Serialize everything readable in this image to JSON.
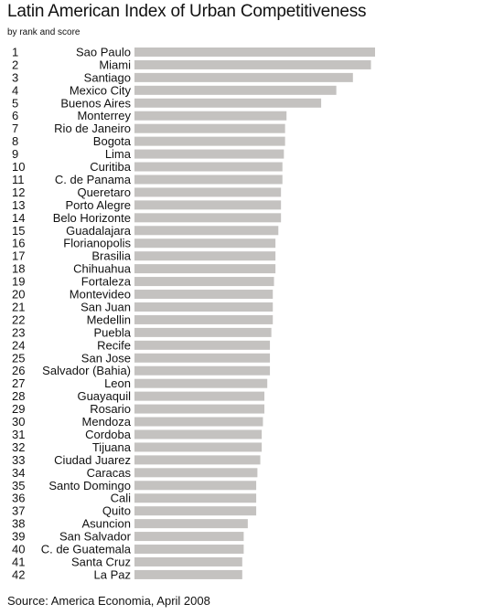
{
  "chart_data": {
    "type": "bar",
    "orientation": "horizontal",
    "title": "Latin American Index of Urban Competitiveness",
    "subtitle": "by rank and score",
    "source": "Source:  America Economia, April 2008",
    "bar_color": "#c4c2c0",
    "grid": false,
    "legend": "none",
    "xlim": [
      0,
      100
    ],
    "categories": [
      "Sao Paulo",
      "Miami",
      "Santiago",
      "Mexico City",
      "Buenos Aires",
      "Monterrey",
      "Rio de Janeiro",
      "Bogota",
      "Lima",
      "Curitiba",
      "C. de Panama",
      "Queretaro",
      "Porto Alegre",
      "Belo Horizonte",
      "Guadalajara",
      "Florianopolis",
      "Brasilia",
      "Chihuahua",
      "Fortaleza",
      "Montevideo",
      "San Juan",
      "Medellin",
      "Puebla",
      "Recife",
      "San Jose",
      "Salvador (Bahia)",
      "Leon",
      "Guayaquil",
      "Rosario",
      "Mendoza",
      "Cordoba",
      "Tijuana",
      "Ciudad Juarez",
      "Caracas",
      "Santo Domingo",
      "Cali",
      "Quito",
      "Asuncion",
      "San Salvador",
      "C. de Guatemala",
      "Santa Cruz",
      "La Paz"
    ],
    "ranks": [
      "1",
      "2",
      "3",
      "4",
      "5",
      "6",
      "7",
      "8",
      "9",
      "10",
      "11",
      "12",
      "13",
      "14",
      "15",
      "16",
      "17",
      "18",
      "19",
      "20",
      "21",
      "22",
      "23",
      "24",
      "25",
      "26",
      "27",
      "28",
      "29",
      "30",
      "31",
      "32",
      "33",
      "34",
      "35",
      "36",
      "37",
      "38",
      "39",
      "40",
      "41",
      "42"
    ],
    "values": [
      100,
      98.3,
      90.8,
      83.9,
      77.6,
      63.2,
      62.6,
      62.6,
      62.1,
      61.5,
      61.5,
      60.9,
      60.9,
      60.9,
      59.8,
      58.6,
      58.6,
      58.6,
      58.0,
      57.5,
      57.5,
      57.5,
      56.9,
      56.3,
      56.3,
      56.3,
      55.2,
      54.0,
      54.0,
      53.4,
      52.9,
      52.9,
      52.3,
      51.1,
      50.6,
      50.6,
      50.6,
      47.1,
      45.4,
      45.4,
      44.8,
      44.8
    ]
  }
}
